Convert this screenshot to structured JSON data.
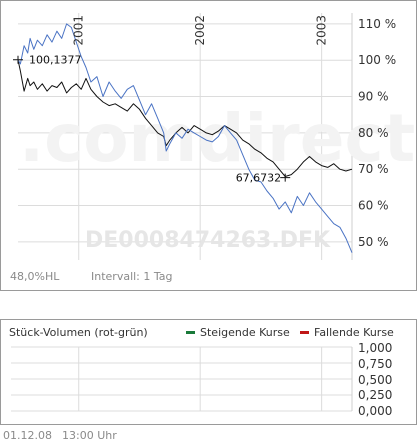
{
  "chart_data": {
    "type": "line",
    "title": "",
    "watermark": ".comdirect",
    "isin_watermark": "DE0008474263.DFK",
    "y_axis": {
      "ticks": [
        "110 %",
        "100 %",
        "90 %",
        "80 %",
        "70 %",
        "60 %",
        "50 %"
      ],
      "tick_values": [
        110,
        100,
        90,
        80,
        70,
        60,
        50
      ],
      "range": [
        45,
        113
      ],
      "position": "right"
    },
    "x_axis": {
      "ticks": [
        "2001",
        "2002",
        "2003"
      ],
      "tick_values": [
        2001.0,
        2002.0,
        2003.0
      ],
      "range": [
        2000.5,
        2003.25
      ]
    },
    "annotations": [
      {
        "label": "100,1377",
        "x": 2000.5,
        "y": 100.14
      },
      {
        "label": "67,6732",
        "x": 2002.7,
        "y": 67.67
      }
    ],
    "series": [
      {
        "color": "#111111",
        "x": [
          2000.5,
          2000.52,
          2000.55,
          2000.58,
          2000.6,
          2000.63,
          2000.66,
          2000.7,
          2000.74,
          2000.78,
          2000.82,
          2000.86,
          2000.9,
          2000.94,
          2000.98,
          2001.02,
          2001.06,
          2001.1,
          2001.15,
          2001.2,
          2001.25,
          2001.3,
          2001.35,
          2001.4,
          2001.45,
          2001.5,
          2001.55,
          2001.6,
          2001.65,
          2001.7,
          2001.72,
          2001.75,
          2001.8,
          2001.85,
          2001.9,
          2001.95,
          2002.0,
          2002.05,
          2002.1,
          2002.15,
          2002.2,
          2002.25,
          2002.3,
          2002.35,
          2002.4,
          2002.45,
          2002.5,
          2002.55,
          2002.6,
          2002.65,
          2002.7,
          2002.75,
          2002.8,
          2002.85,
          2002.9,
          2002.95,
          2003.0,
          2003.05,
          2003.1,
          2003.15,
          2003.2,
          2003.25
        ],
        "y": [
          100.1,
          97.0,
          91.5,
          95.0,
          93.0,
          94.0,
          92.0,
          93.5,
          91.5,
          93.0,
          92.5,
          94.0,
          91.0,
          92.5,
          93.5,
          92.0,
          95.0,
          92.0,
          90.0,
          88.5,
          87.5,
          88.0,
          87.0,
          86.0,
          88.0,
          86.5,
          84.0,
          82.0,
          80.0,
          79.0,
          76.5,
          78.0,
          80.0,
          81.5,
          80.0,
          82.0,
          81.0,
          80.0,
          79.5,
          80.5,
          82.0,
          81.0,
          80.0,
          78.0,
          77.0,
          75.5,
          74.5,
          73.0,
          72.0,
          70.0,
          68.0,
          68.5,
          70.0,
          72.0,
          73.5,
          72.0,
          71.0,
          70.5,
          71.5,
          70.0,
          69.5,
          70.0
        ]
      },
      {
        "color": "#4a73c4",
        "x": [
          2000.5,
          2000.52,
          2000.55,
          2000.58,
          2000.6,
          2000.63,
          2000.66,
          2000.7,
          2000.74,
          2000.78,
          2000.82,
          2000.86,
          2000.9,
          2000.94,
          2000.98,
          2001.02,
          2001.06,
          2001.1,
          2001.15,
          2001.2,
          2001.25,
          2001.3,
          2001.35,
          2001.4,
          2001.45,
          2001.5,
          2001.55,
          2001.6,
          2001.65,
          2001.7,
          2001.72,
          2001.75,
          2001.8,
          2001.85,
          2001.9,
          2001.95,
          2002.0,
          2002.05,
          2002.1,
          2002.15,
          2002.2,
          2002.25,
          2002.3,
          2002.35,
          2002.4,
          2002.45,
          2002.5,
          2002.55,
          2002.6,
          2002.65,
          2002.7,
          2002.75,
          2002.8,
          2002.85,
          2002.9,
          2002.95,
          2003.0,
          2003.05,
          2003.1,
          2003.15,
          2003.2,
          2003.25
        ],
        "y": [
          100.1,
          99.0,
          104.0,
          102.0,
          106.0,
          103.0,
          105.5,
          104.0,
          107.0,
          105.0,
          108.0,
          106.0,
          110.0,
          109.0,
          105.0,
          101.0,
          98.0,
          94.0,
          95.5,
          90.0,
          94.0,
          91.5,
          89.5,
          92.0,
          93.0,
          89.0,
          85.0,
          88.0,
          84.0,
          80.0,
          75.0,
          77.0,
          80.0,
          78.5,
          81.0,
          80.0,
          79.0,
          78.0,
          77.5,
          79.0,
          82.0,
          80.0,
          78.0,
          74.0,
          70.0,
          67.0,
          66.5,
          64.0,
          62.0,
          59.0,
          61.0,
          58.0,
          62.5,
          60.0,
          63.5,
          61.0,
          59.0,
          57.0,
          55.0,
          54.0,
          51.0,
          47.0
        ]
      }
    ]
  },
  "price_panel": {
    "hl_value": "48,0",
    "hl_label": "%HL",
    "interval_label": "Intervall: 1 Tag"
  },
  "volume_panel": {
    "title": "Stück-Volumen (rot-grün)",
    "legend": [
      {
        "label": "Steigende Kurse",
        "color": "#1a7a3a"
      },
      {
        "label": "Fallende Kurse",
        "color": "#c01818"
      }
    ],
    "ticks": [
      "1,000",
      "0,750",
      "0,500",
      "0,250",
      "0,000"
    ]
  },
  "footer": {
    "date": "01.12.08",
    "time": "13:00 Uhr"
  }
}
